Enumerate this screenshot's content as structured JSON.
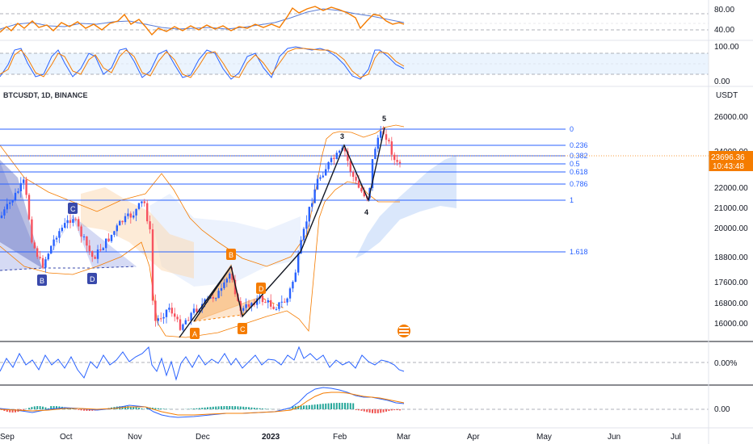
{
  "chart_data": {
    "type": "candlestick",
    "title": "BTCUSDT, 1D, BINANCE",
    "currency": "USDT",
    "last_price": "23696.36",
    "countdown": "10:43:48",
    "price_ticks": [
      "26000.00",
      "24000.00",
      "22000.00",
      "21000.00",
      "20000.00",
      "18800.00",
      "17600.00",
      "16800.00",
      "16000.00"
    ],
    "time_labels": [
      "Sep",
      "Oct",
      "Nov",
      "Dec",
      "2023",
      "Feb",
      "Mar",
      "Apr",
      "May",
      "Jun",
      "Jul"
    ],
    "panes": {
      "stoch_rsi_top": {
        "ticks": [
          "80.00",
          "40.00"
        ]
      },
      "stoch_rsi": {
        "ticks": [
          "100.00",
          "0.00"
        ]
      },
      "oscillator": {
        "ticks": [
          "0.00%"
        ]
      },
      "macd": {
        "ticks": [
          "0.00"
        ]
      }
    },
    "fib_levels": [
      {
        "label": "0",
        "price": 25250
      },
      {
        "label": "0.236",
        "price": 24150
      },
      {
        "label": "0.382",
        "price": 23530
      },
      {
        "label": "0.5",
        "price": 23050
      },
      {
        "label": "0.618",
        "price": 22580
      },
      {
        "label": "0.786",
        "price": 21870
      },
      {
        "label": "1",
        "price": 21000
      },
      {
        "label": "1.618",
        "price": 18600
      }
    ],
    "wave_labels": [
      "3",
      "4",
      "5"
    ],
    "pattern_labels_orange": [
      "A",
      "B",
      "C",
      "D"
    ],
    "pattern_labels_blue": [
      "B",
      "C",
      "D"
    ],
    "colors": {
      "up": "#2962ff",
      "down": "#f7525f",
      "fib": "#2962ff",
      "bollinger": "#f57c00",
      "orange_line": "#f57c00",
      "blue_line": "#5b7dd6"
    }
  }
}
